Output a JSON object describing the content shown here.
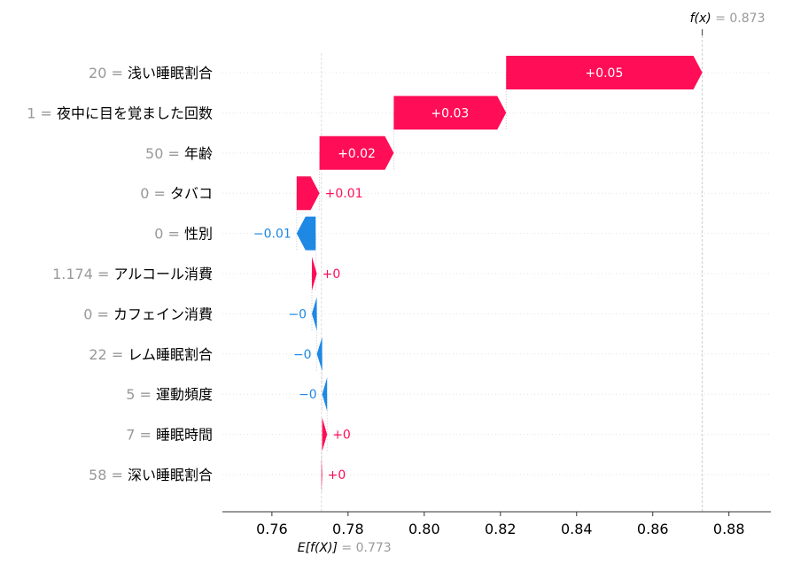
{
  "chart_data": {
    "type": "waterfall",
    "base_value": 0.773,
    "base_label": {
      "prefix": "E[f(X)]",
      "suffix": "= 0.773"
    },
    "output_value": 0.873,
    "output_label": {
      "prefix": "f(x)",
      "suffix": "= 0.873"
    },
    "xlim": [
      0.747,
      0.891
    ],
    "x_ticks": [
      {
        "value": 0.76,
        "label": "0.76"
      },
      {
        "value": 0.78,
        "label": "0.78"
      },
      {
        "value": 0.8,
        "label": "0.80"
      },
      {
        "value": 0.82,
        "label": "0.82"
      },
      {
        "value": 0.84,
        "label": "0.84"
      },
      {
        "value": 0.86,
        "label": "0.86"
      },
      {
        "value": 0.88,
        "label": "0.88"
      }
    ],
    "colors": {
      "positive": "#ff0d57",
      "negative": "#1e88e5"
    },
    "features": [
      {
        "value_text": "20 =",
        "name": "浅い睡眠割合",
        "start": 0.8215,
        "end": 0.873,
        "label": "+0.05"
      },
      {
        "value_text": "1 =",
        "name": "夜中に目を覚ました回数",
        "start": 0.792,
        "end": 0.8215,
        "label": "+0.03"
      },
      {
        "value_text": "50 =",
        "name": "年齢",
        "start": 0.7725,
        "end": 0.792,
        "label": "+0.02"
      },
      {
        "value_text": "0 =",
        "name": "タバコ",
        "start": 0.7665,
        "end": 0.7725,
        "label": "+0.01"
      },
      {
        "value_text": "0 =",
        "name": "性別",
        "start": 0.7715,
        "end": 0.7665,
        "label": "−0.01"
      },
      {
        "value_text": "1.174 =",
        "name": "アルコール消費",
        "start": 0.7705,
        "end": 0.7718,
        "label": "+0"
      },
      {
        "value_text": "0 =",
        "name": "カフェイン消費",
        "start": 0.7718,
        "end": 0.7705,
        "label": "−0"
      },
      {
        "value_text": "22 =",
        "name": "レム睡眠割合",
        "start": 0.7732,
        "end": 0.7718,
        "label": "−0"
      },
      {
        "value_text": "5 =",
        "name": "運動頻度",
        "start": 0.7745,
        "end": 0.7732,
        "label": "−0"
      },
      {
        "value_text": "7 =",
        "name": "睡眠時間",
        "start": 0.7732,
        "end": 0.7745,
        "label": "+0"
      },
      {
        "value_text": "58 =",
        "name": "深い睡眠割合",
        "start": 0.773,
        "end": 0.7732,
        "label": "+0"
      }
    ]
  }
}
